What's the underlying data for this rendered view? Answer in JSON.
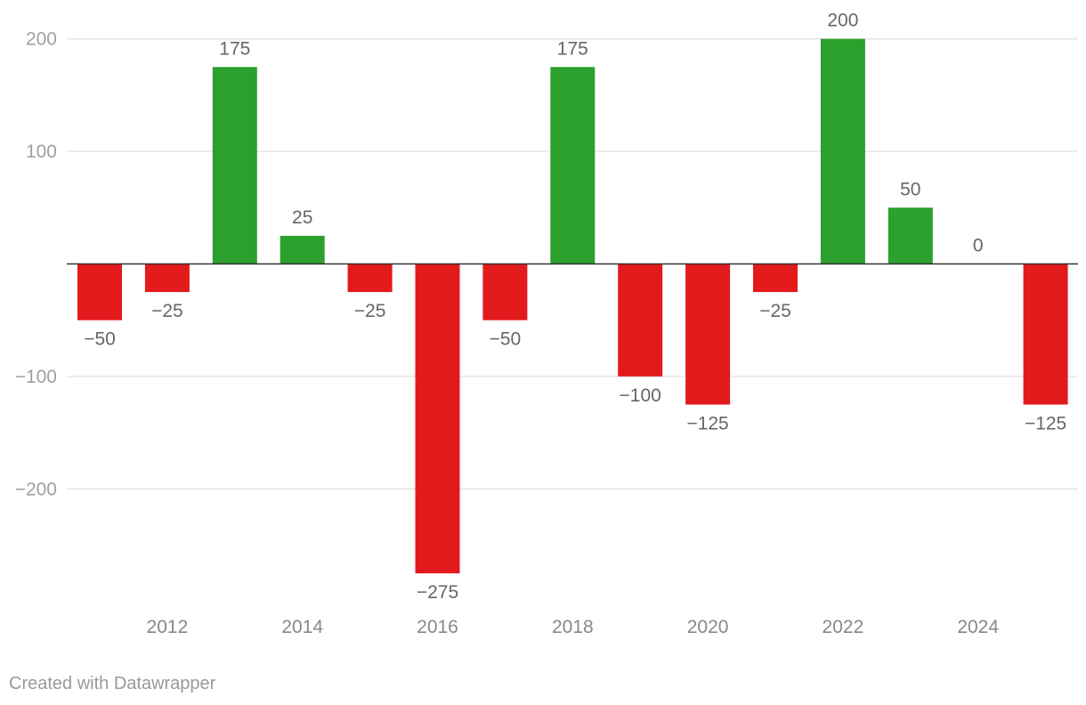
{
  "chart_data": {
    "type": "bar",
    "categories": [
      "2011",
      "2012",
      "2013",
      "2014",
      "2015",
      "2016",
      "2017",
      "2018",
      "2019",
      "2020",
      "2021",
      "2022",
      "2023",
      "2024",
      "2025"
    ],
    "values": [
      -50,
      -25,
      175,
      25,
      -25,
      -275,
      -50,
      175,
      -100,
      -125,
      -25,
      200,
      50,
      0,
      -125
    ],
    "value_labels": [
      "−50",
      "−25",
      "175",
      "25",
      "−25",
      "−275",
      "−50",
      "175",
      "−100",
      "−125",
      "−25",
      "200",
      "50",
      "0",
      "−125"
    ],
    "ylim": [
      -300,
      200
    ],
    "yticks": [
      200,
      100,
      -100,
      -200
    ],
    "ytick_labels": [
      "200",
      "100",
      "−100",
      "−200"
    ],
    "xticks": [
      "2012",
      "2014",
      "2016",
      "2018",
      "2020",
      "2022",
      "2024"
    ],
    "colors": {
      "positive": "#2ca02c",
      "negative": "#e31a1c"
    },
    "grid": true,
    "legend": "none"
  },
  "footer": {
    "credit": "Created with Datawrapper"
  }
}
